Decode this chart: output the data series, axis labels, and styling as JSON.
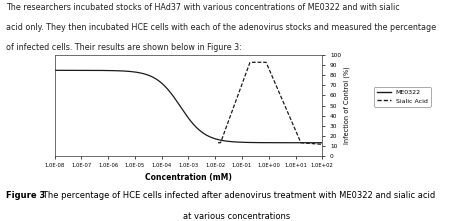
{
  "xlabel": "Concentration (mM)",
  "ylabel": "Infection of Control (%)",
  "ylim": [
    0,
    100
  ],
  "yticks": [
    0,
    10,
    20,
    30,
    40,
    50,
    60,
    70,
    80,
    90,
    100
  ],
  "xtick_labels": [
    "1.0E-08",
    "1.0E-07",
    "1.0E-06",
    "1.0E-05",
    "1.0E-04",
    "1.0E-03",
    "1.0E-02",
    "1.0E-01",
    "1.0E+00",
    "1.0E+01",
    "1.0E+02"
  ],
  "me0322_label": "ME0322",
  "sialic_label": "Sialic Acid",
  "background_color": "#ffffff",
  "line_color": "#1a1a1a",
  "text_line1": "The researchers incubated stocks of HAd37 with various concentrations of ME0322 and with sialic",
  "text_line2": "acid only. They then incubated HCE cells with each of the adenovirus stocks and measured the percentage",
  "text_line3": "of infected cells. Their results are shown below in Figure 3:",
  "caption_bold": "Figure 3",
  "caption_rest": "   The percentage of HCE cells infected after adenovirus treatment with ME0322 and sialic acid",
  "caption_line2": "at various concentrations"
}
